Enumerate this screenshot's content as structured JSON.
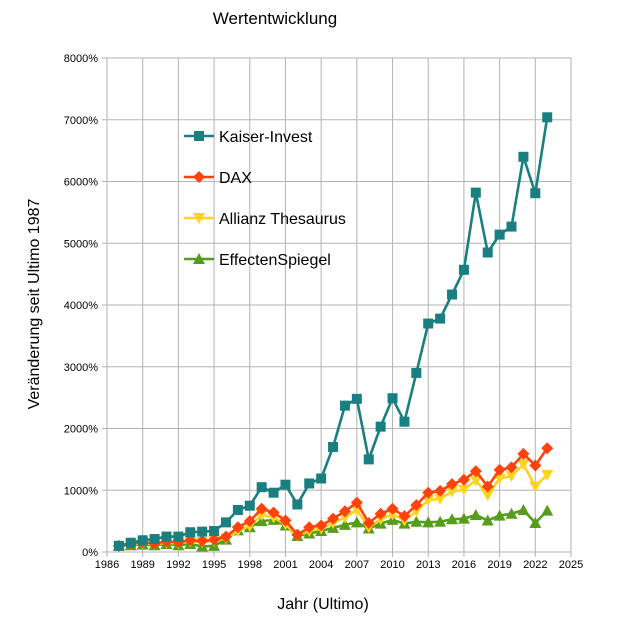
{
  "chart_data": {
    "type": "line",
    "title": "Wertentwicklung",
    "xlabel": "Jahr (Ultimo)",
    "ylabel": "Veränderung seit Ultimo 1987",
    "xlim": [
      1986,
      2025
    ],
    "ylim": [
      0,
      8000
    ],
    "x_ticks": [
      "1986",
      "1989",
      "1992",
      "1995",
      "1998",
      "2001",
      "2004",
      "2007",
      "2010",
      "2013",
      "2016",
      "2019",
      "2022",
      "2025"
    ],
    "y_ticks": [
      "0%",
      "1000%",
      "2000%",
      "3000%",
      "4000%",
      "5000%",
      "6000%",
      "7000%",
      "8000%"
    ],
    "grid": true,
    "legend_position": "top-left inside",
    "series": [
      {
        "name": "Kaiser-Invest",
        "color": "#1a7f80",
        "marker": "square",
        "x": [
          1987,
          1988,
          1989,
          1990,
          1991,
          1992,
          1993,
          1994,
          1995,
          1996,
          1997,
          1998,
          1999,
          2000,
          2001,
          2002,
          2003,
          2004,
          2005,
          2006,
          2007,
          2008,
          2009,
          2010,
          2011,
          2012,
          2013,
          2014,
          2015,
          2016,
          2017,
          2018,
          2019,
          2020,
          2021,
          2022,
          2023
        ],
        "values": [
          100,
          150,
          190,
          210,
          250,
          250,
          320,
          330,
          340,
          480,
          680,
          750,
          1050,
          960,
          1090,
          770,
          1110,
          1190,
          1700,
          2370,
          2480,
          1500,
          2030,
          2490,
          2110,
          2900,
          3700,
          3780,
          4170,
          4570,
          5820,
          4850,
          5140,
          5270,
          6400,
          5810,
          7040
        ]
      },
      {
        "name": "DAX",
        "color": "#ff420e",
        "marker": "diamond",
        "x": [
          1987,
          1988,
          1989,
          1990,
          1991,
          1992,
          1993,
          1994,
          1995,
          1996,
          1997,
          1998,
          1999,
          2000,
          2001,
          2002,
          2003,
          2004,
          2005,
          2006,
          2007,
          2008,
          2009,
          2010,
          2011,
          2012,
          2013,
          2014,
          2015,
          2016,
          2017,
          2018,
          2019,
          2020,
          2021,
          2022,
          2023
        ],
        "values": [
          100,
          130,
          160,
          140,
          170,
          160,
          190,
          180,
          200,
          250,
          400,
          500,
          700,
          640,
          510,
          280,
          400,
          430,
          540,
          660,
          800,
          470,
          620,
          700,
          580,
          760,
          960,
          990,
          1100,
          1170,
          1310,
          1060,
          1330,
          1370,
          1590,
          1400,
          1680
        ]
      },
      {
        "name": "Allianz Thesaurus",
        "color": "#ffd320",
        "marker": "triangle-down",
        "x": [
          1987,
          1988,
          1989,
          1990,
          1991,
          1992,
          1993,
          1994,
          1995,
          1996,
          1997,
          1998,
          1999,
          2000,
          2001,
          2002,
          2003,
          2004,
          2005,
          2006,
          2007,
          2008,
          2009,
          2010,
          2011,
          2012,
          2013,
          2014,
          2015,
          2016,
          2017,
          2018,
          2019,
          2020,
          2021,
          2022,
          2023
        ],
        "values": [
          100,
          120,
          140,
          130,
          150,
          140,
          170,
          160,
          180,
          220,
          340,
          420,
          600,
          560,
          450,
          260,
          340,
          380,
          470,
          560,
          680,
          400,
          530,
          610,
          510,
          660,
          840,
          860,
          980,
          1010,
          1160,
          920,
          1190,
          1230,
          1420,
          1060,
          1250
        ]
      },
      {
        "name": "EffectenSpiegel",
        "color": "#579d1c",
        "marker": "triangle-up",
        "x": [
          1987,
          1988,
          1989,
          1990,
          1991,
          1992,
          1993,
          1994,
          1995,
          1996,
          1997,
          1998,
          1999,
          2000,
          2001,
          2002,
          2003,
          2004,
          2005,
          2006,
          2007,
          2008,
          2009,
          2010,
          2011,
          2012,
          2013,
          2014,
          2015,
          2016,
          2017,
          2018,
          2019,
          2020,
          2021,
          2022,
          2023
        ],
        "values": [
          100,
          110,
          120,
          110,
          130,
          110,
          130,
          90,
          100,
          200,
          350,
          400,
          500,
          520,
          430,
          260,
          300,
          340,
          390,
          440,
          480,
          380,
          460,
          520,
          460,
          490,
          480,
          490,
          530,
          540,
          600,
          510,
          590,
          620,
          680,
          470,
          670
        ]
      }
    ]
  }
}
